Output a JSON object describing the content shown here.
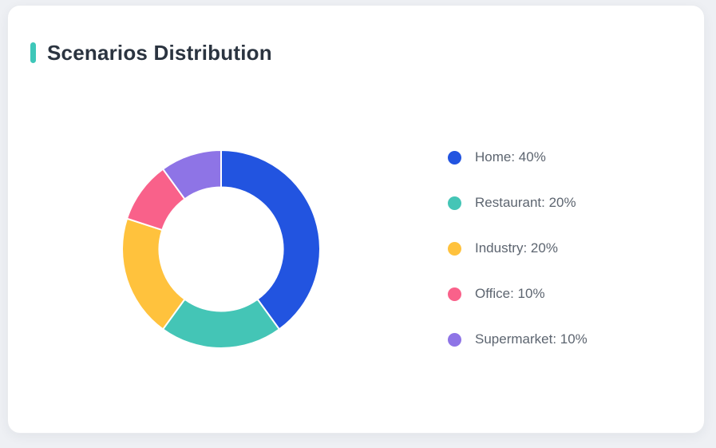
{
  "page": {
    "background_color": "#eef0f4"
  },
  "card": {
    "title": "Scenarios Distribution",
    "accent_color": "#3ec7b9",
    "background_color": "#ffffff"
  },
  "chart_data": {
    "type": "pie",
    "subtype": "donut",
    "title": "Scenarios Distribution",
    "categories": [
      "Home",
      "Restaurant",
      "Industry",
      "Office",
      "Supermarket"
    ],
    "values": [
      40,
      20,
      20,
      10,
      10
    ],
    "unit": "%",
    "colors": [
      "#2254e0",
      "#44c5b6",
      "#ffc23d",
      "#f9618a",
      "#8e74e6"
    ],
    "start_angle_deg": 0,
    "direction": "clockwise",
    "inner_radius_ratio": 0.625,
    "segment_border_color": "#ffffff",
    "segment_border_width": 2,
    "legend_position": "right",
    "legend": [
      {
        "label": "Home: 40%",
        "color": "#2254e0"
      },
      {
        "label": "Restaurant: 20%",
        "color": "#44c5b6"
      },
      {
        "label": "Industry: 20%",
        "color": "#ffc23d"
      },
      {
        "label": "Office: 10%",
        "color": "#f9618a"
      },
      {
        "label": "Supermarket: 10%",
        "color": "#8e74e6"
      }
    ]
  }
}
